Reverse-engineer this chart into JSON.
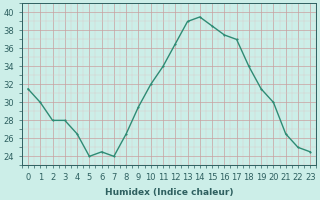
{
  "x": [
    0,
    1,
    2,
    3,
    4,
    5,
    6,
    7,
    8,
    9,
    10,
    11,
    12,
    13,
    14,
    15,
    16,
    17,
    18,
    19,
    20,
    21,
    22,
    23
  ],
  "y": [
    31.5,
    30,
    28,
    28,
    26.5,
    24,
    24.5,
    24,
    26.5,
    29.5,
    32,
    34,
    36.5,
    39,
    39.5,
    38.5,
    37.5,
    37,
    34,
    31.5,
    30,
    26.5,
    25,
    24.5
  ],
  "line_color": "#2e8b74",
  "marker_color": "#2e8b74",
  "bg_color": "#cceee8",
  "grid_color_major": "#c8a0a0",
  "grid_color_minor": "#ddc8c8",
  "xlabel": "Humidex (Indice chaleur)",
  "ylim": [
    23,
    41
  ],
  "xlim": [
    -0.5,
    23.5
  ],
  "yticks": [
    24,
    26,
    28,
    30,
    32,
    34,
    36,
    38,
    40
  ],
  "xticks": [
    0,
    1,
    2,
    3,
    4,
    5,
    6,
    7,
    8,
    9,
    10,
    11,
    12,
    13,
    14,
    15,
    16,
    17,
    18,
    19,
    20,
    21,
    22,
    23
  ],
  "xlabel_fontsize": 6.5,
  "tick_fontsize": 6.0,
  "line_width": 1.0,
  "marker_size": 2.0,
  "tick_color": "#2e6060",
  "label_color": "#2e6060"
}
